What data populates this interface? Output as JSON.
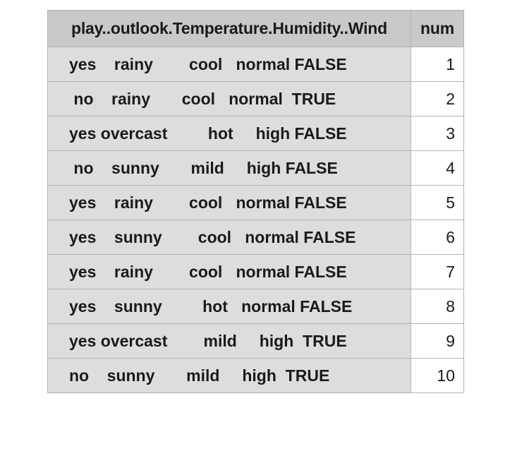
{
  "chart_data": {
    "type": "table",
    "columns": [
      "play..outlook.Temperature.Humidity..Wind",
      "num"
    ],
    "rows": [
      {
        "main": "yes    rainy        cool   normal FALSE",
        "num": "1"
      },
      {
        "main": " no    rainy       cool   normal  TRUE",
        "num": "2"
      },
      {
        "main": "yes overcast         hot     high FALSE",
        "num": "3"
      },
      {
        "main": " no    sunny       mild     high FALSE",
        "num": "4"
      },
      {
        "main": "yes    rainy        cool   normal FALSE",
        "num": "5"
      },
      {
        "main": "yes    sunny        cool   normal FALSE",
        "num": "6"
      },
      {
        "main": "yes    rainy        cool   normal FALSE",
        "num": "7"
      },
      {
        "main": "yes    sunny         hot   normal FALSE",
        "num": "8"
      },
      {
        "main": "yes overcast        mild     high  TRUE",
        "num": "9"
      },
      {
        "main": "no    sunny       mild     high  TRUE",
        "num": "10"
      }
    ]
  }
}
